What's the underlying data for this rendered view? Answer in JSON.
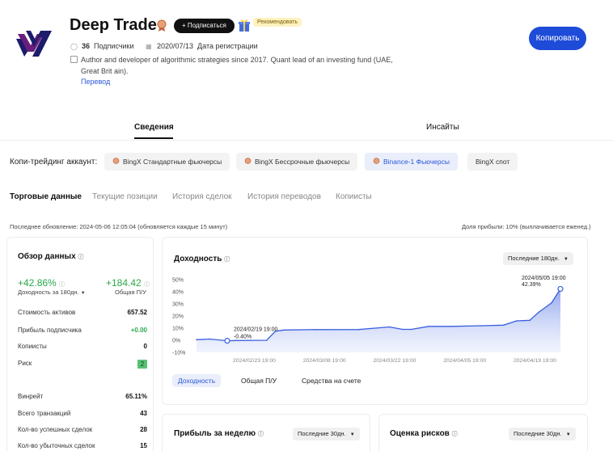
{
  "header": {
    "trader_name": "Deep Trade",
    "subscribe_label": "+ Подписаться",
    "recommended_label": "Рекомендовать",
    "subscribers_count": "36",
    "subscribers_label": "Подписчики",
    "registered_date": "2020/07/13",
    "registered_label": "Дата регистрации",
    "bio": "Author and developer of algorithmic strategies since 2017. Quant lead of an investing fund (UAE, Great Brit ain).",
    "translate_label": "Перевод",
    "copy_button": "Копировать"
  },
  "main_tabs": [
    {
      "label": "Сведения",
      "active": true
    },
    {
      "label": "Инсайты",
      "active": false
    }
  ],
  "copy_trading": {
    "label": "Копи-трейдинг аккаунт:",
    "accounts": [
      {
        "label": "BingX Стандартные фьючерсы",
        "active": false
      },
      {
        "label": "BingX Бессрочные фьючерсы",
        "active": false
      },
      {
        "label": "Binance-1 Фьючерсы",
        "active": true
      },
      {
        "label": "BingX спот",
        "active": false
      }
    ]
  },
  "sub_tabs": [
    {
      "label": "Торговые данные",
      "active": true
    },
    {
      "label": "Текущие позиции",
      "active": false
    },
    {
      "label": "История сделок",
      "active": false
    },
    {
      "label": "История переводов",
      "active": false
    },
    {
      "label": "Копиисты",
      "active": false
    }
  ],
  "updated_text": "Последнее обновление: 2024-05-06 12:05:04 (обновляется каждые 15 минут)",
  "profit_share_text": "Доля прибыли: 10% (выплачивается еженед.)",
  "overview": {
    "title": "Обзор данных",
    "return_value": "+42.86%",
    "return_label": "Доходность за 180дн.",
    "pnl_value": "+184.42",
    "pnl_label": "Общая П/У",
    "rows": [
      {
        "label": "Стоимость активов",
        "value": "657.52"
      },
      {
        "label": "Прибыль подписчика",
        "value": "+0.00"
      },
      {
        "label": "Копиисты",
        "value": "0"
      },
      {
        "label": "Риск",
        "value": "2"
      }
    ],
    "rows2": [
      {
        "label": "Винрейт",
        "value": "65.11%"
      },
      {
        "label": "Всего транзакций",
        "value": "43"
      },
      {
        "label": "Кол-во успешных сделок",
        "value": "28"
      },
      {
        "label": "Кол-во убыточных сделок",
        "value": "15"
      }
    ]
  },
  "profit_chart": {
    "title": "Доходность",
    "period": "Последние 180дн.",
    "tabs": [
      {
        "label": "Доходность",
        "active": true
      },
      {
        "label": "Общая П/У",
        "active": false
      },
      {
        "label": "Средства на счете",
        "active": false
      }
    ],
    "tooltip_start": {
      "date": "2024/02/19 19:00",
      "value": "-0.40%"
    },
    "tooltip_end": {
      "date": "2024/05/05 19:00",
      "value": "42.39%"
    }
  },
  "week_card": {
    "title": "Прибыль за неделю",
    "period": "Последние 30дн."
  },
  "risk_card": {
    "title": "Оценка рисков",
    "period": "Последние 30дн."
  },
  "chart_data": {
    "type": "area",
    "x_tick_labels": [
      "2024/02/23 19:00",
      "2024/03/08 19:00",
      "2024/03/22 19:00",
      "2024/04/05 19:00",
      "2024/04/19 19:00"
    ],
    "y_tick_labels": [
      "50%",
      "40%",
      "30%",
      "20%",
      "10%",
      "0%",
      "-10%"
    ],
    "ylim": [
      -10,
      50
    ],
    "line_color": "#3a5fe0",
    "fill_color": "#c7d3f7",
    "x": [
      "2024/02/12",
      "2024/02/15",
      "2024/02/19",
      "2024/02/21",
      "2024/02/28",
      "2024/03/01",
      "2024/03/03",
      "2024/03/10",
      "2024/03/20",
      "2024/03/27",
      "2024/03/30",
      "2024/04/01",
      "2024/04/05",
      "2024/04/10",
      "2024/04/17",
      "2024/04/22",
      "2024/04/25",
      "2024/04/28",
      "2024/04/30",
      "2024/05/03",
      "2024/05/05"
    ],
    "values": [
      0.5,
      1.0,
      -0.4,
      -0.2,
      0.0,
      7.5,
      8.5,
      8.8,
      8.9,
      11,
      9.0,
      9.0,
      11.5,
      11.5,
      12.0,
      12.5,
      16,
      16.5,
      23,
      31,
      42.39
    ]
  },
  "colors": {
    "accent": "#1e4bd8",
    "positive": "#2aa84a",
    "risk_badge": "#59c074"
  }
}
